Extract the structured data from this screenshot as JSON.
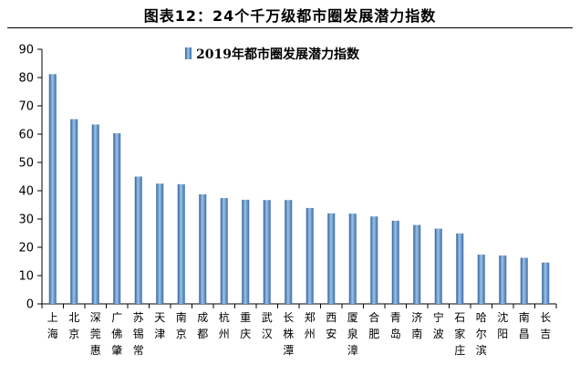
{
  "figure": {
    "title": "图表12：24个千万级都市圈发展潜力指数"
  },
  "chart_data": {
    "type": "bar",
    "categories": [
      "上海",
      "北京",
      "深莞惠",
      "广佛肇",
      "苏锡常",
      "天津",
      "南京",
      "成都",
      "杭州",
      "重庆",
      "武汉",
      "长株潭",
      "郑州",
      "西安",
      "厦泉漳",
      "合肥",
      "青岛",
      "济南",
      "宁波",
      "石家庄",
      "哈尔滨",
      "沈阳",
      "南昌",
      "长吉"
    ],
    "series": [
      {
        "name": "2019年都市圈发展潜力指数",
        "values": [
          81.2,
          65.3,
          63.4,
          60.3,
          45.0,
          42.5,
          42.3,
          38.7,
          37.4,
          36.8,
          36.7,
          36.7,
          33.9,
          32.0,
          31.9,
          30.9,
          29.4,
          27.9,
          26.6,
          24.9,
          17.4,
          17.1,
          16.3,
          14.6
        ]
      }
    ],
    "ylim": [
      0,
      90
    ],
    "yticks": [
      0,
      10,
      20,
      30,
      40,
      50,
      60,
      70,
      80,
      90
    ],
    "legend": "top-center",
    "grid": false,
    "bar_color": "#5b8cc4"
  }
}
